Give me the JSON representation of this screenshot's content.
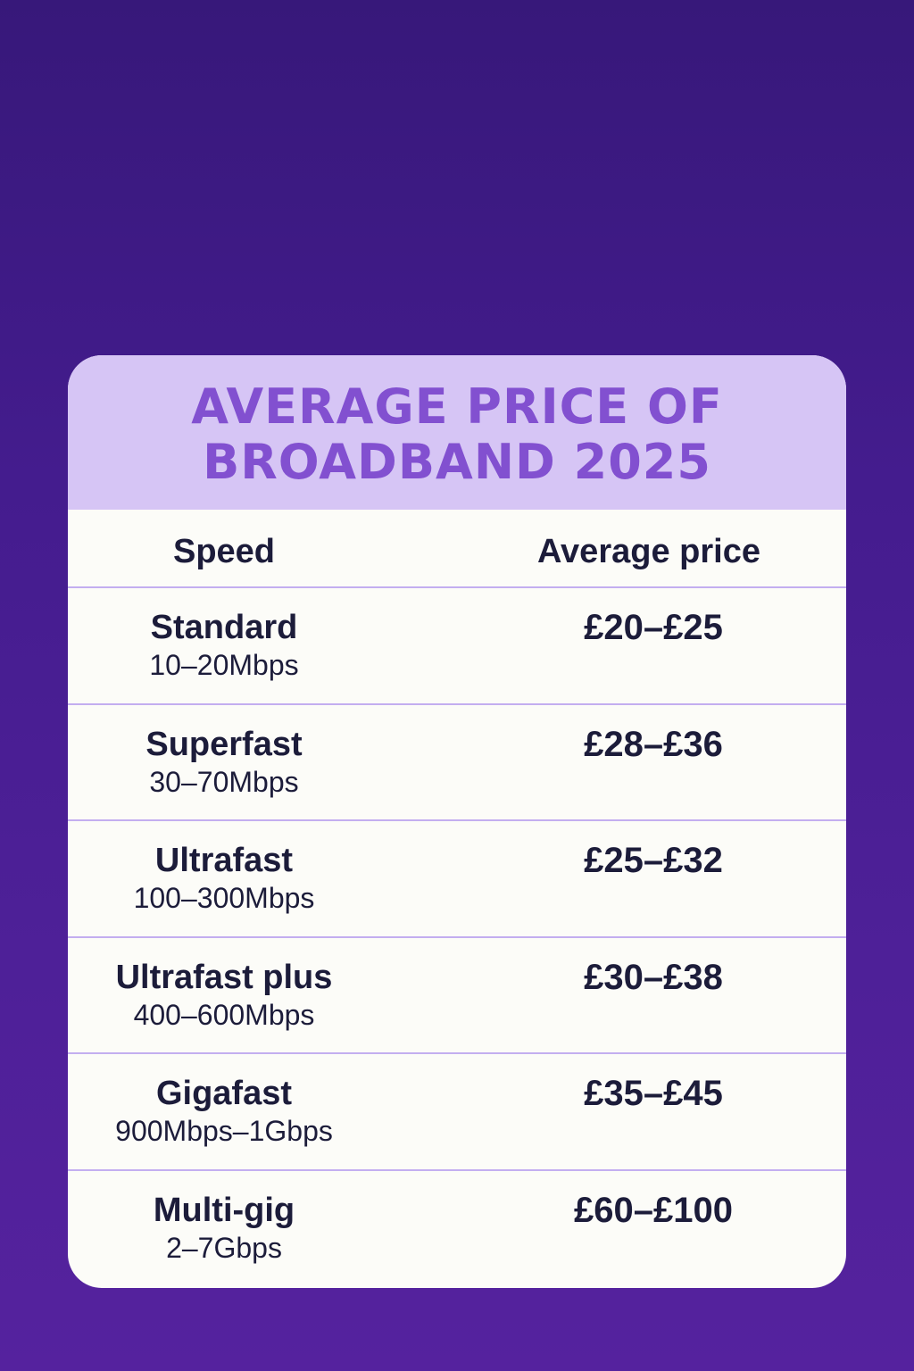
{
  "colors": {
    "background": "#441c8e",
    "card": "#fcfcf8",
    "header_band": "#d6c5f5",
    "title_text": "#8250d0",
    "body_text": "#1c1c3a",
    "divider": "#c3aef0"
  },
  "title": {
    "line1": "AVERAGE PRICE OF",
    "line2": "BROADBAND 2025"
  },
  "table": {
    "headers": {
      "speed": "Speed",
      "price": "Average price"
    },
    "rows": [
      {
        "name": "Standard",
        "speed": "10–20Mbps",
        "price": "£20–£25"
      },
      {
        "name": "Superfast",
        "speed": "30–70Mbps",
        "price": "£28–£36"
      },
      {
        "name": "Ultrafast",
        "speed": "100–300Mbps",
        "price": "£25–£32"
      },
      {
        "name": "Ultrafast plus",
        "speed": "400–600Mbps",
        "price": "£30–£38"
      },
      {
        "name": "Gigafast",
        "speed": "900Mbps–1Gbps",
        "price": "£35–£45"
      },
      {
        "name": "Multi-gig",
        "speed": "2–7Gbps",
        "price": "£60–£100"
      }
    ]
  }
}
